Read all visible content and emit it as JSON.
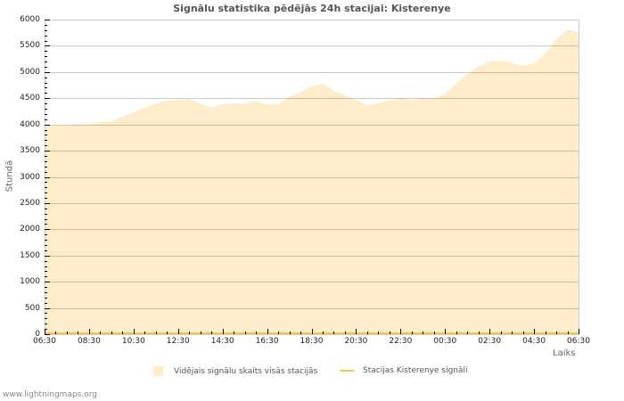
{
  "title": "Signālu statistika pēdējās 24h stacijai: Kisterenye",
  "footer": "www.lightningmaps.org",
  "colors": {
    "area_fill": "#feecca",
    "station_line": "#f4c542",
    "grid": "rgba(0,0,0,0.2)",
    "border": "#cccccc",
    "ticks": "#000000"
  },
  "legend": [
    {
      "label": "Vidējais signālu skaits visās stacijās",
      "type": "area"
    },
    {
      "label": "Stacijas Kisterenye signāli",
      "type": "line"
    }
  ],
  "chart_data": {
    "type": "area",
    "title": "Signālu statistika pēdējās 24h stacijai: Kisterenye",
    "xlabel": "Laiks",
    "ylabel": "Stundā",
    "ylim": [
      0,
      6000
    ],
    "yticks": [
      0,
      500,
      1000,
      1500,
      2000,
      2500,
      3000,
      3500,
      4000,
      4500,
      5000,
      5500,
      6000
    ],
    "xtick_labels": [
      "06:30",
      "08:30",
      "10:30",
      "12:30",
      "14:30",
      "16:30",
      "18:30",
      "20:30",
      "22:30",
      "00:30",
      "02:30",
      "04:30",
      "06:30"
    ],
    "grid": true,
    "legend_position": "bottom",
    "x": [
      "06:30",
      "07:00",
      "07:30",
      "08:00",
      "08:30",
      "09:00",
      "09:30",
      "10:00",
      "10:30",
      "11:00",
      "11:30",
      "12:00",
      "12:30",
      "13:00",
      "13:30",
      "14:00",
      "14:30",
      "15:00",
      "15:30",
      "16:00",
      "16:30",
      "17:00",
      "17:30",
      "18:00",
      "18:30",
      "19:00",
      "19:30",
      "20:00",
      "20:30",
      "21:00",
      "21:30",
      "22:00",
      "22:30",
      "23:00",
      "23:30",
      "00:00",
      "00:30",
      "01:00",
      "01:30",
      "02:00",
      "02:30",
      "03:00",
      "03:30",
      "04:00",
      "04:30",
      "05:00",
      "05:30",
      "06:00",
      "06:30"
    ],
    "series": [
      {
        "name": "Vidējais signālu skaits visās stacijās",
        "type": "area",
        "values": [
          3970,
          3975,
          3980,
          3990,
          4000,
          4040,
          4060,
          4150,
          4230,
          4320,
          4400,
          4460,
          4460,
          4490,
          4400,
          4320,
          4390,
          4400,
          4400,
          4450,
          4380,
          4380,
          4530,
          4620,
          4730,
          4780,
          4640,
          4560,
          4470,
          4370,
          4410,
          4460,
          4510,
          4470,
          4510,
          4500,
          4580,
          4780,
          4960,
          5100,
          5200,
          5220,
          5170,
          5120,
          5160,
          5350,
          5620,
          5810,
          5760
        ]
      },
      {
        "name": "Stacijas Kisterenye signāli",
        "type": "line",
        "values": [
          0,
          0,
          0,
          0,
          0,
          0,
          0,
          0,
          0,
          0,
          0,
          0,
          0,
          0,
          0,
          0,
          0,
          0,
          0,
          0,
          0,
          0,
          0,
          0,
          0,
          0,
          0,
          0,
          0,
          0,
          0,
          0,
          0,
          0,
          0,
          0,
          0,
          0,
          0,
          0,
          0,
          0,
          0,
          0,
          0,
          0,
          0,
          0,
          0
        ]
      }
    ]
  }
}
